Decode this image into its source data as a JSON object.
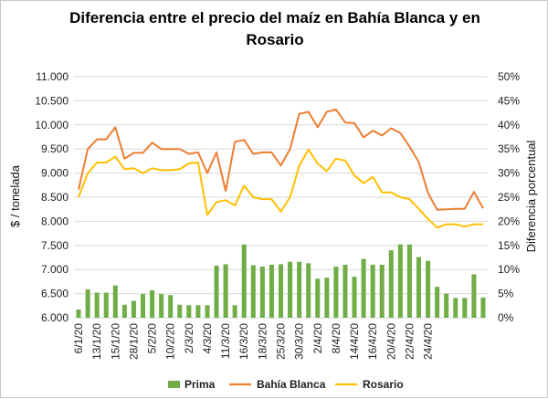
{
  "chart_data": {
    "type": "bar+line",
    "title_line1": "Diferencia entre el precio del maíz en Bahía Blanca y en",
    "title_line2": "Rosario",
    "ylabel_left": "$ / tonelada",
    "ylabel_right": "Diferencia porcentual",
    "y_left_ticks": [
      "6.000",
      "6.500",
      "7.000",
      "7.500",
      "8.000",
      "8.500",
      "9.000",
      "9.500",
      "10.000",
      "10.500",
      "11.000"
    ],
    "y_right_ticks": [
      "0%",
      "5%",
      "10%",
      "15%",
      "20%",
      "25%",
      "30%",
      "35%",
      "40%",
      "45%",
      "50%"
    ],
    "ylim_left": [
      6000,
      11000
    ],
    "ylim_right": [
      0,
      50
    ],
    "x_tick_labels": [
      "6/1/20",
      "13/1/20",
      "15/1/20",
      "28/1/20",
      "5/2/20",
      "10/2/20",
      "2/3/20",
      "4/3/20",
      "11/3/20",
      "16/3/20",
      "18/3/20",
      "25/3/20",
      "30/3/20",
      "2/4/20",
      "8/4/20",
      "14/4/20",
      "16/4/20",
      "20/4/20",
      "22/4/20",
      "24/4/20"
    ],
    "grid": true,
    "legend_position": "bottom",
    "colors": {
      "prima": "#70ad47",
      "bahia": "#ed7d31",
      "rosario": "#ffc000",
      "grid": "#d9d9d9"
    },
    "series": [
      {
        "name": "Prima",
        "axis": "right",
        "kind": "bar",
        "values": [
          1.7,
          5.9,
          5.2,
          5.2,
          6.7,
          2.7,
          3.5,
          4.9,
          5.7,
          4.9,
          4.7,
          2.7,
          2.6,
          2.6,
          2.6,
          10.8,
          11.1,
          2.6,
          15.2,
          10.9,
          10.6,
          11.0,
          11.1,
          11.6,
          11.6,
          11.3,
          8.1,
          8.3,
          10.6,
          11.0,
          8.5,
          12.2,
          11.0,
          11.0,
          14.0,
          15.2,
          15.2,
          12.6,
          11.8,
          6.4,
          5.0,
          4.1,
          4.1,
          9.0,
          4.2
        ]
      },
      {
        "name": "Bahía Blanca",
        "axis": "left",
        "kind": "line",
        "values": [
          8660,
          9500,
          9700,
          9700,
          9950,
          9300,
          9420,
          9420,
          9630,
          9500,
          9500,
          9500,
          9400,
          9430,
          9000,
          9430,
          8630,
          9650,
          9690,
          9400,
          9430,
          9430,
          9160,
          9500,
          10230,
          10270,
          9950,
          10270,
          10320,
          10050,
          10040,
          9740,
          9880,
          9780,
          9930,
          9830,
          9550,
          9230,
          8590,
          8240,
          8250,
          8260,
          8260,
          8610,
          8270
        ]
      },
      {
        "name": "Rosario",
        "axis": "left",
        "kind": "line",
        "values": [
          8500,
          9000,
          9220,
          9220,
          9340,
          9080,
          9100,
          9000,
          9100,
          9060,
          9060,
          9080,
          9200,
          9220,
          8130,
          8400,
          8440,
          8330,
          8740,
          8500,
          8460,
          8460,
          8200,
          8500,
          9150,
          9490,
          9200,
          9040,
          9300,
          9260,
          8950,
          8790,
          8920,
          8600,
          8600,
          8500,
          8460,
          8260,
          8050,
          7870,
          7940,
          7940,
          7890,
          7940,
          7940
        ]
      }
    ]
  }
}
